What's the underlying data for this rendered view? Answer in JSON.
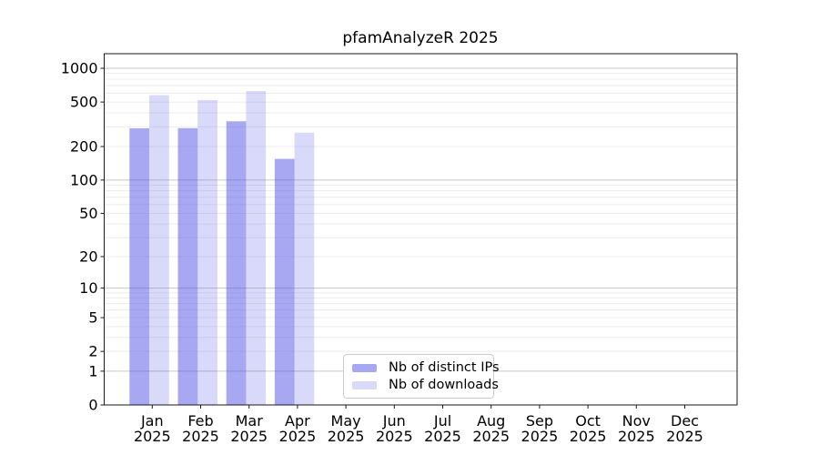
{
  "title": "pfamAnalyzeR 2025",
  "chart_data": {
    "type": "bar",
    "title": "pfamAnalyzeR 2025",
    "categories": [
      "Jan",
      "Feb",
      "Mar",
      "Apr",
      "May",
      "Jun",
      "Jul",
      "Aug",
      "Sep",
      "Oct",
      "Nov",
      "Dec"
    ],
    "year": "2025",
    "series": [
      {
        "name": "Nb of distinct IPs",
        "color": "rgba(80,80,230,0.5)",
        "values": [
          291,
          292,
          336,
          155,
          null,
          null,
          null,
          null,
          null,
          null,
          null,
          null
        ]
      },
      {
        "name": "Nb of downloads",
        "color": "rgba(80,80,230,0.22)",
        "values": [
          575,
          520,
          627,
          266,
          null,
          null,
          null,
          null,
          null,
          null,
          null,
          null
        ]
      }
    ],
    "y_ticks": [
      0,
      1,
      2,
      5,
      10,
      20,
      50,
      100,
      200,
      500,
      1000
    ],
    "y_scale": "log10(1+x)",
    "ylim": [
      0,
      1350
    ],
    "xlabel": "",
    "ylabel": "",
    "grid": "horizontal log major+minor",
    "legend_position": "lower center",
    "colors": {
      "major_grid": "#c6c6c6",
      "minor_grid": "#ececec",
      "spine": "#1a1a1a",
      "bar_base": "#5050e6"
    }
  }
}
